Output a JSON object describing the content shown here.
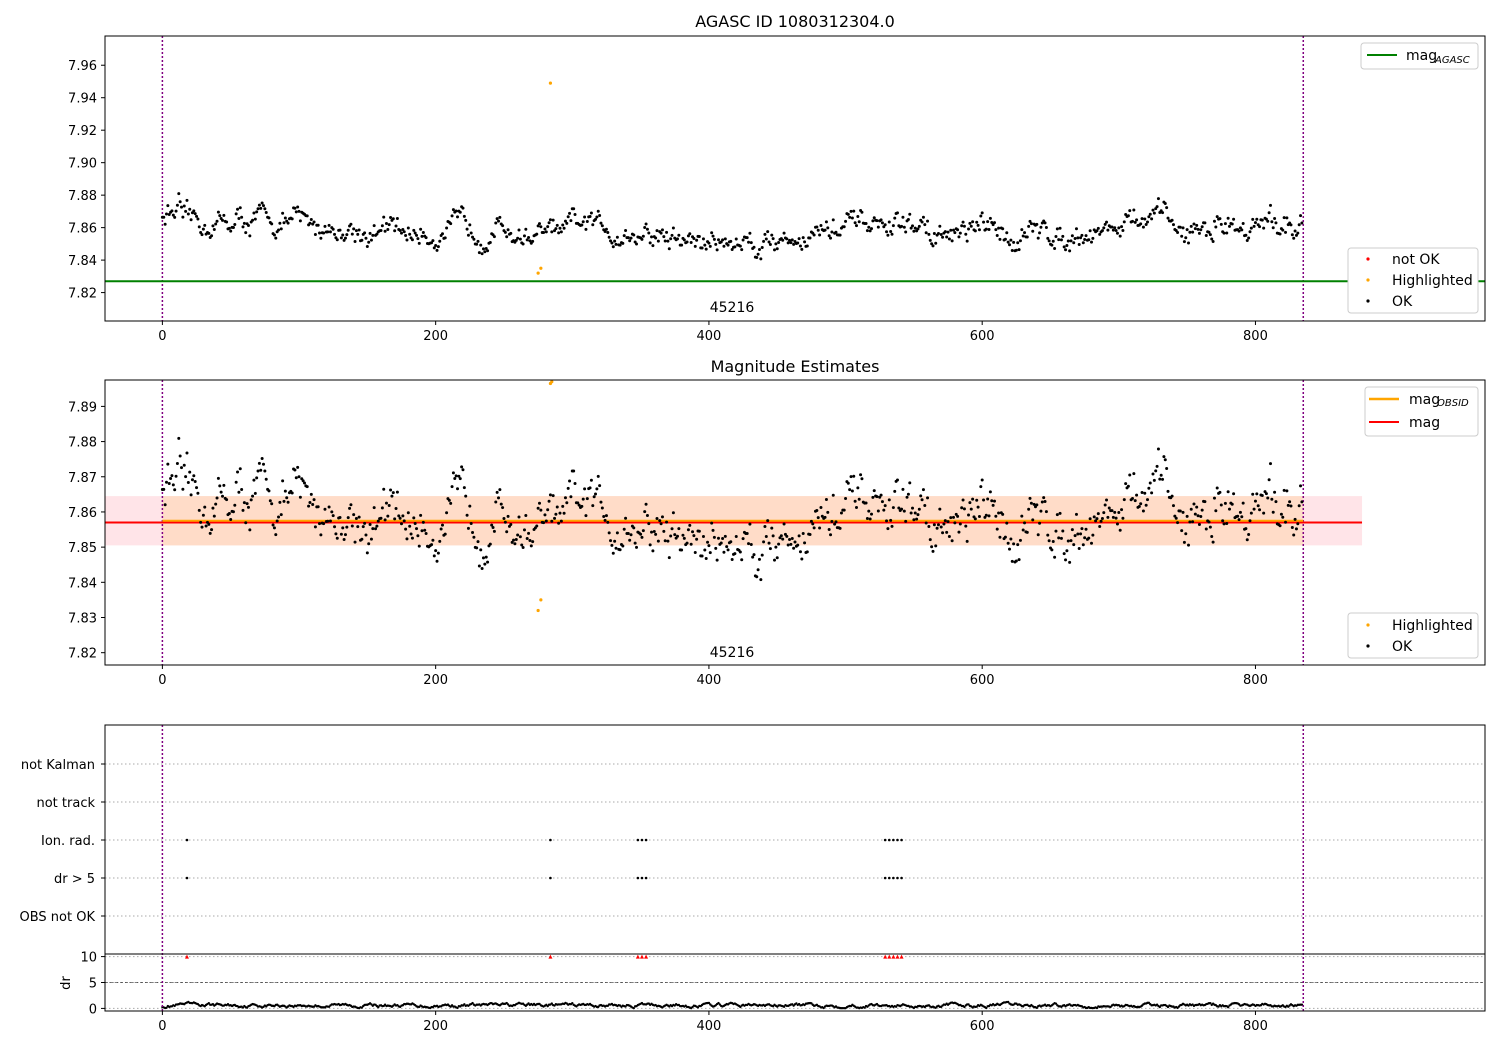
{
  "chart_data": [
    {
      "type": "scatter",
      "title": "AGASC ID 1080312304.0",
      "xlim": [
        -42,
        968
      ],
      "ylim": [
        7.8025,
        7.978
      ],
      "x_ticks": [
        "0",
        "200",
        "400",
        "600",
        "800"
      ],
      "y_ticks": [
        "7.82",
        "7.84",
        "7.86",
        "7.88",
        "7.90",
        "7.92",
        "7.94",
        "7.96"
      ],
      "obs_boundaries": [
        0,
        835
      ],
      "obsid_label": "45216",
      "mag_agasc": 7.827,
      "legend_lines": [
        {
          "label": "mag",
          "sub": "AGASC",
          "color": "#008000"
        }
      ],
      "legend_points": [
        {
          "label": "not OK",
          "color": "#ff0000"
        },
        {
          "label": "Highlighted",
          "color": "#ffa500"
        },
        {
          "label": "OK",
          "color": "#000000"
        }
      ],
      "highlighted": [
        [
          275,
          7.832
        ],
        [
          277,
          7.835
        ],
        [
          284,
          7.949
        ]
      ],
      "n_points": 835
    },
    {
      "type": "scatter",
      "title": "Magnitude Estimates",
      "xlim": [
        -42,
        968
      ],
      "ylim": [
        7.8165,
        7.8975
      ],
      "x_ticks": [
        "0",
        "200",
        "400",
        "600",
        "800"
      ],
      "y_ticks": [
        "7.82",
        "7.83",
        "7.84",
        "7.85",
        "7.86",
        "7.87",
        "7.88",
        "7.89"
      ],
      "obs_boundaries": [
        0,
        835
      ],
      "obsid_label": "45216",
      "mag": 7.857,
      "mag_obsid": 7.8575,
      "band_inner": [
        7.8505,
        7.8645
      ],
      "band_outer": [
        7.8505,
        7.8645
      ],
      "band_x": [
        -42,
        878
      ],
      "legend_lines": [
        {
          "label": "mag",
          "sub": "OBSID",
          "color": "#ffa500"
        },
        {
          "label": "mag",
          "sub": "",
          "color": "#ff0000"
        }
      ],
      "legend_points": [
        {
          "label": "Highlighted",
          "color": "#ffa500"
        },
        {
          "label": "OK",
          "color": "#000000"
        }
      ],
      "highlighted": [
        [
          275,
          7.832
        ],
        [
          277,
          7.835
        ],
        [
          284,
          7.8965
        ],
        [
          285,
          7.897
        ]
      ]
    },
    {
      "type": "scatter",
      "title": "",
      "xlim": [
        -42,
        968
      ],
      "x_ticks": [
        "0",
        "200",
        "400",
        "600",
        "800"
      ],
      "flag_labels": [
        "not Kalman",
        "not track",
        "Ion. rad.",
        "dr > 5",
        "OBS not OK"
      ],
      "flag_points": {
        "Ion. rad.": [
          18,
          284,
          348,
          351,
          354,
          529,
          532,
          535,
          538,
          541
        ],
        "dr > 5": [
          18,
          284,
          348,
          351,
          354,
          529,
          532,
          535,
          538,
          541
        ]
      },
      "dr": {
        "ylabel": "dr",
        "y_ticks": [
          "0",
          "5",
          "10"
        ],
        "ylim": [
          -0.5,
          10.5
        ],
        "clipped_x": [
          18,
          284,
          348,
          351,
          354,
          529,
          532,
          535,
          538,
          541
        ]
      }
    }
  ]
}
